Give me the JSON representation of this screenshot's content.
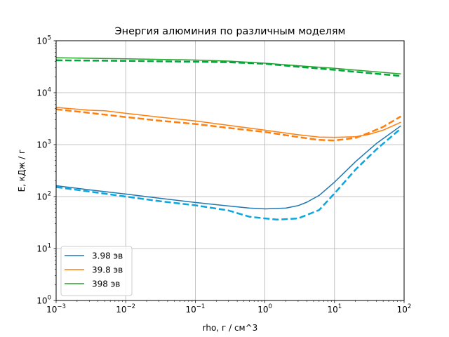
{
  "chart_data": {
    "type": "line",
    "title": "Энергия алюминия по различным моделям",
    "xlabel": "rho, г / см^3",
    "ylabel": "E, кДж / г",
    "xscale": "log",
    "yscale": "log",
    "xlim": [
      0.001,
      100
    ],
    "ylim": [
      1,
      100000
    ],
    "grid": true,
    "legend_position": "lower-left",
    "x_ticks": [
      {
        "value": 0.001,
        "base": "10",
        "exp": "−3"
      },
      {
        "value": 0.01,
        "base": "10",
        "exp": "−2"
      },
      {
        "value": 0.1,
        "base": "10",
        "exp": "−1"
      },
      {
        "value": 1,
        "base": "10",
        "exp": "0"
      },
      {
        "value": 10,
        "base": "10",
        "exp": "1"
      },
      {
        "value": 100,
        "base": "10",
        "exp": "2"
      }
    ],
    "y_ticks": [
      {
        "value": 1,
        "base": "10",
        "exp": "0"
      },
      {
        "value": 10,
        "base": "10",
        "exp": "1"
      },
      {
        "value": 100,
        "base": "10",
        "exp": "2"
      },
      {
        "value": 1000,
        "base": "10",
        "exp": "3"
      },
      {
        "value": 10000,
        "base": "10",
        "exp": "4"
      },
      {
        "value": 100000,
        "base": "10",
        "exp": "5"
      }
    ],
    "series": [
      {
        "name": "3.98 эв",
        "color": "#1f77b4",
        "style": "solid",
        "in_legend": true,
        "x": [
          0.001,
          0.003,
          0.01,
          0.03,
          0.1,
          0.3,
          0.6,
          1,
          2,
          3,
          4,
          6,
          10,
          20,
          40,
          90
        ],
        "y": [
          162,
          135,
          112,
          93,
          77,
          66,
          60,
          58,
          60,
          67,
          78,
          105,
          190,
          470,
          1050,
          2300
        ]
      },
      {
        "name": "",
        "color": "#0aa6e0",
        "style": "dashed",
        "in_legend": false,
        "x": [
          0.001,
          0.003,
          0.01,
          0.03,
          0.1,
          0.3,
          0.5,
          0.6,
          1,
          1.5,
          3,
          6,
          10,
          20,
          40,
          90
        ],
        "y": [
          152,
          125,
          100,
          82,
          68,
          54,
          44,
          41,
          38,
          36,
          38,
          55,
          115,
          330,
          810,
          2050
        ]
      },
      {
        "name": "39.8 эв",
        "color": "#ff7f0e",
        "style": "solid",
        "in_legend": true,
        "x": [
          0.001,
          0.003,
          0.005,
          0.01,
          0.03,
          0.1,
          0.3,
          1,
          3,
          6,
          10,
          20,
          30,
          50,
          90
        ],
        "y": [
          5200,
          4600,
          4500,
          4000,
          3400,
          2850,
          2350,
          1900,
          1550,
          1400,
          1380,
          1420,
          1550,
          1900,
          2700
        ]
      },
      {
        "name": "",
        "color": "#ff7f0e",
        "style": "dashed",
        "in_legend": false,
        "x": [
          0.001,
          0.003,
          0.01,
          0.03,
          0.1,
          0.3,
          1,
          3,
          6,
          10,
          20,
          30,
          50,
          90
        ],
        "y": [
          4800,
          4100,
          3400,
          2900,
          2500,
          2100,
          1750,
          1400,
          1230,
          1200,
          1350,
          1650,
          2200,
          3500
        ]
      },
      {
        "name": "398 эв",
        "color": "#2ca02c",
        "style": "solid",
        "in_legend": true,
        "x": [
          0.001,
          0.01,
          0.1,
          0.3,
          1,
          3,
          10,
          30,
          90
        ],
        "y": [
          47000,
          45000,
          42500,
          40500,
          37000,
          33000,
          29500,
          26000,
          23000
        ]
      },
      {
        "name": "",
        "color": "#00a63c",
        "style": "dashed",
        "in_legend": false,
        "x": [
          0.001,
          0.01,
          0.1,
          0.3,
          1,
          3,
          10,
          30,
          90
        ],
        "y": [
          42000,
          41000,
          39500,
          38500,
          36000,
          31500,
          27500,
          24000,
          21000
        ]
      }
    ]
  }
}
